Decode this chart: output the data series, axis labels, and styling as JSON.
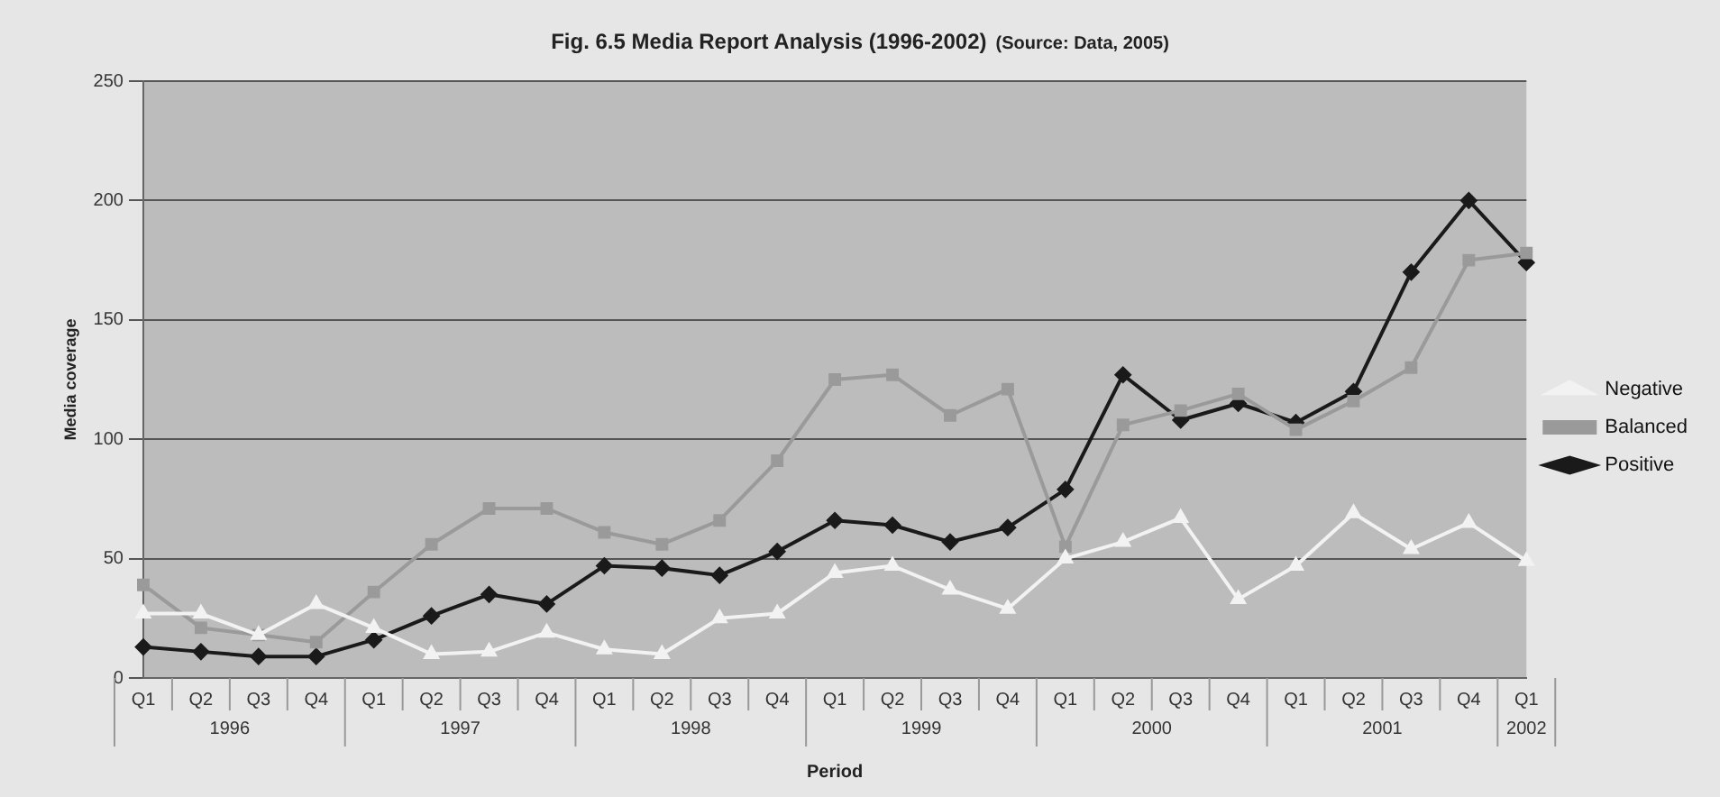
{
  "chart_data": {
    "type": "line",
    "title": "Fig. 6.5  Media Report Analysis (1996-2002)",
    "subtitle": "(Source: Data, 2005)",
    "xlabel": "Period",
    "ylabel": "Media coverage",
    "categories": [
      "Q1",
      "Q2",
      "Q3",
      "Q4",
      "Q1",
      "Q2",
      "Q3",
      "Q4",
      "Q1",
      "Q2",
      "Q3",
      "Q4",
      "Q1",
      "Q2",
      "Q3",
      "Q4",
      "Q1",
      "Q2",
      "Q3",
      "Q4",
      "Q1",
      "Q2",
      "Q3",
      "Q4",
      "Q1"
    ],
    "annotations": [
      "1996",
      "1997",
      "1998",
      "1999",
      "2000",
      "2001",
      "2002"
    ],
    "series": [
      {
        "name": "Positive",
        "color": "#1a1a1a",
        "marker": "diamond",
        "values": [
          13,
          11,
          9,
          9,
          16,
          26,
          35,
          31,
          47,
          46,
          43,
          53,
          66,
          64,
          57,
          63,
          79,
          127,
          108,
          115,
          107,
          120,
          170,
          200,
          174
        ]
      },
      {
        "name": "Balanced",
        "color": "#9a9a9a",
        "marker": "square",
        "values": [
          39,
          21,
          18,
          15,
          36,
          56,
          71,
          71,
          61,
          56,
          66,
          91,
          125,
          127,
          110,
          121,
          55,
          106,
          112,
          119,
          104,
          116,
          130,
          175,
          178
        ]
      },
      {
        "name": "Negative",
        "color": "#f2f2f2",
        "marker": "triangle",
        "values": [
          27,
          27,
          18,
          31,
          21,
          10,
          11,
          19,
          12,
          10,
          25,
          27,
          44,
          47,
          37,
          29,
          50,
          57,
          67,
          33,
          47,
          69,
          54,
          65,
          49
        ]
      }
    ],
    "ylim": [
      0,
      250
    ],
    "yticks": [
      0,
      50,
      100,
      150,
      200,
      250
    ],
    "grid": "y",
    "legend": "right"
  }
}
